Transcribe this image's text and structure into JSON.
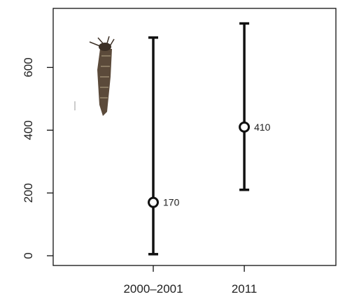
{
  "chart_data": {
    "type": "errorbar",
    "categories": [
      "2000–2001",
      "2011"
    ],
    "values": [
      170,
      410
    ],
    "low": [
      5,
      210
    ],
    "high": [
      695,
      740
    ],
    "color": "#111111",
    "ylim": [
      -31,
      788
    ],
    "yticks": [
      0,
      200,
      400,
      600
    ]
  }
}
